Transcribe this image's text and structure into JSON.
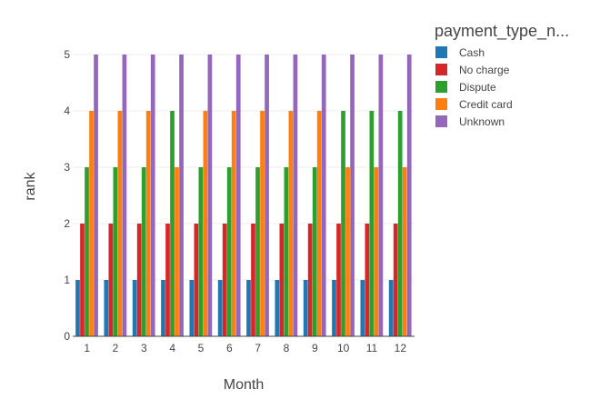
{
  "chart_data": {
    "type": "bar",
    "title": "",
    "xlabel": "Month",
    "ylabel": "rank",
    "ylim": [
      0,
      5
    ],
    "yticks": [
      "0",
      "1",
      "2",
      "3",
      "4",
      "5"
    ],
    "categories": [
      "1",
      "2",
      "3",
      "4",
      "5",
      "6",
      "7",
      "8",
      "9",
      "10",
      "11",
      "12"
    ],
    "legend": {
      "title": "payment_type_n...",
      "placement": "top-right"
    },
    "grid": true,
    "series": [
      {
        "name": "Cash",
        "color": "#1f77b4",
        "values": [
          1,
          1,
          1,
          1,
          1,
          1,
          1,
          1,
          1,
          1,
          1,
          1
        ]
      },
      {
        "name": "No charge",
        "color": "#d62728",
        "values": [
          2,
          2,
          2,
          2,
          2,
          2,
          2,
          2,
          2,
          2,
          2,
          2
        ]
      },
      {
        "name": "Dispute",
        "color": "#2ca02c",
        "values": [
          3,
          3,
          3,
          4,
          3,
          3,
          3,
          3,
          3,
          4,
          4,
          4
        ]
      },
      {
        "name": "Credit card",
        "color": "#ff7f0e",
        "values": [
          4,
          4,
          4,
          3,
          4,
          4,
          4,
          4,
          4,
          3,
          3,
          3
        ]
      },
      {
        "name": "Unknown",
        "color": "#9467bd",
        "values": [
          5,
          5,
          5,
          5,
          5,
          5,
          5,
          5,
          5,
          5,
          5,
          5
        ]
      }
    ]
  }
}
